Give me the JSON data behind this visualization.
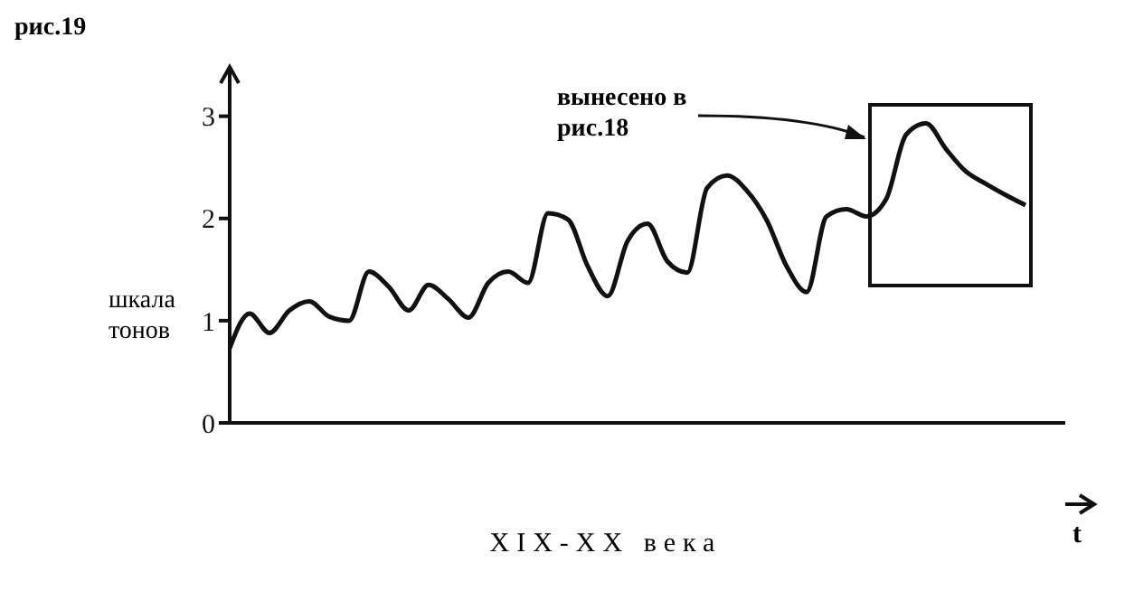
{
  "chart_data": {
    "type": "line",
    "title": "рис.19",
    "xlabel": "XIX-XX века",
    "ylabel": "шкала тонов",
    "annotations": [
      "вынесено в рис.18",
      "t"
    ],
    "categories": [
      null,
      null,
      null,
      null,
      null,
      null,
      null,
      null,
      null,
      null,
      null,
      null,
      null,
      null,
      null,
      null,
      null,
      null,
      null,
      null,
      null,
      null,
      null,
      null,
      null,
      null,
      null,
      null,
      null,
      null,
      null,
      null,
      null,
      null,
      null,
      null,
      null,
      null,
      null,
      null,
      null
    ],
    "values": [
      0.73,
      1.07,
      0.88,
      1.1,
      1.19,
      1.04,
      1.0,
      1.48,
      1.33,
      1.1,
      1.35,
      1.21,
      1.03,
      1.37,
      1.48,
      1.37,
      2.05,
      1.99,
      1.53,
      1.24,
      1.78,
      1.95,
      1.58,
      1.47,
      2.3,
      2.42,
      2.27,
      1.98,
      1.53,
      1.28,
      2.02,
      2.09,
      2.02,
      2.19,
      2.82,
      2.93,
      2.68,
      2.46,
      2.34,
      2.23,
      2.13
    ],
    "color": "#111111",
    "marker": "none",
    "line_style": "solid",
    "ylim": [
      0,
      3.2
    ],
    "yticks": [
      0,
      1,
      2,
      3
    ],
    "tick_labels": "y"
  }
}
